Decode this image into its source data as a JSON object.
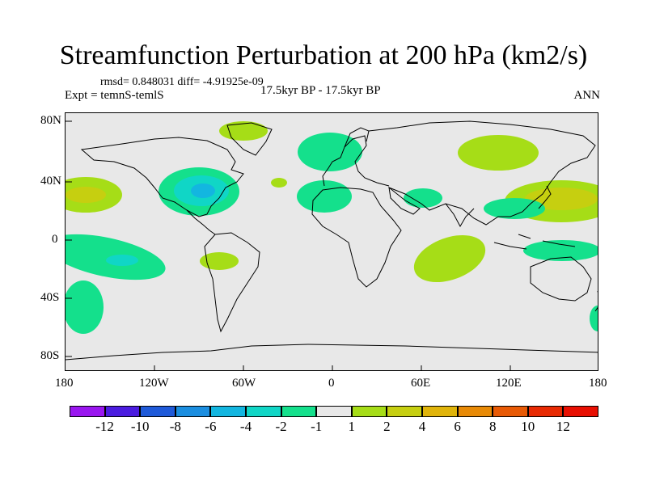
{
  "title": "Streamfunction Perturbation at 200 hPa (km2/s)",
  "stats_line": "rmsd= 0.848031 diff= -4.91925e-09",
  "expt_line": "Expt = temnS-temlS",
  "period_line": "17.5kyr BP - 17.5kyr BP",
  "season": "ANN",
  "axes": {
    "lat_labels": [
      "80N",
      "40N",
      "0",
      "40S",
      "80S"
    ],
    "lon_labels": [
      "180",
      "120W",
      "60W",
      "0",
      "60E",
      "120E",
      "180"
    ]
  },
  "colorbar": {
    "labels": [
      "-12",
      "-10",
      "-8",
      "-6",
      "-4",
      "-2",
      "-1",
      "1",
      "2",
      "4",
      "6",
      "8",
      "10",
      "12"
    ],
    "colors": [
      "#9a16f0",
      "#4b1ce0",
      "#1f5ad9",
      "#1b8ee0",
      "#13b6e0",
      "#10d6c6",
      "#14e08c",
      "#e8e8e8",
      "#a6dd17",
      "#c6cf10",
      "#e0b40a",
      "#e88a06",
      "#e85a05",
      "#e82a03",
      "#e80f02"
    ]
  },
  "colors": {
    "land_bg": "#e8e8e8",
    "neg_light": "#14e08c",
    "neg_mid": "#10d6c6",
    "neg_strong": "#13b6e0",
    "pos_light": "#a6dd17",
    "pos_mid": "#c6cf10"
  }
}
